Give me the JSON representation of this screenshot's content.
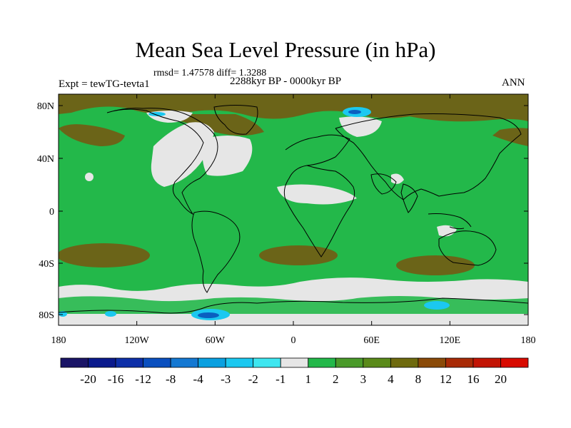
{
  "title": "Mean Sea Level Pressure (in hPa)",
  "stats": "rmsd= 1.47578 diff= 1.3288",
  "period": "2288kyr BP - 0000kyr BP",
  "experiment": "Expt = tewTG-tevta1",
  "season": "ANN",
  "lat_labels": [
    "80N",
    "40N",
    "0",
    "40S",
    "80S"
  ],
  "lon_labels": [
    "180",
    "120W",
    "60W",
    "0",
    "60E",
    "120E",
    "180"
  ],
  "colorbar": {
    "colors": [
      "#1a1466",
      "#0a1a8c",
      "#0d2fa8",
      "#0a4fbf",
      "#1478d2",
      "#0aa0e0",
      "#1bc8f0",
      "#3ee6f0",
      "#e6e6e6",
      "#23b84a",
      "#4a9a2a",
      "#5a8a1a",
      "#6e6a0e",
      "#8a4a08",
      "#a82a06",
      "#c21404",
      "#d80a00"
    ],
    "labels": [
      "-20",
      "-16",
      "-12",
      "-8",
      "-4",
      "-3",
      "-2",
      "-1",
      "1",
      "2",
      "3",
      "4",
      "8",
      "12",
      "16",
      "20"
    ]
  },
  "palette": {
    "green": "#23b84a",
    "olive": "#6b6418",
    "lightgray": "#e6e6e6",
    "cyan": "#1bc8f0",
    "blue": "#0a5fc0"
  }
}
